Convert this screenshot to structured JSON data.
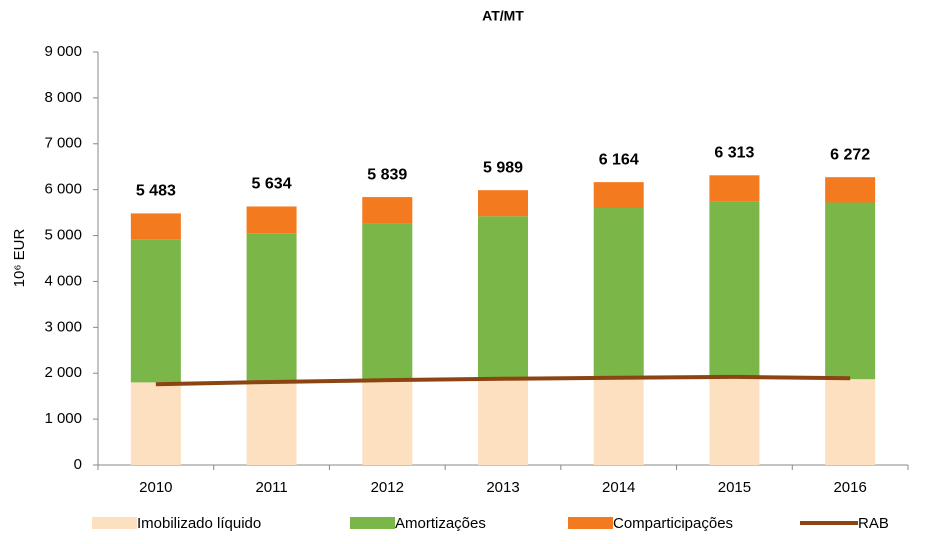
{
  "chart_data": {
    "type": "stacked-bar-line",
    "title": "AT/MT",
    "y_label": "10⁶ EUR",
    "categories": [
      "2010",
      "2011",
      "2012",
      "2013",
      "2014",
      "2015",
      "2016"
    ],
    "series": [
      {
        "name": "Imobilizado líquido",
        "color": "#fde0c0",
        "values": [
          1800,
          1830,
          1870,
          1900,
          1920,
          1930,
          1870
        ]
      },
      {
        "name": "Amortizações",
        "color": "#7ab648",
        "values": [
          3120,
          3220,
          3390,
          3520,
          3680,
          3820,
          3850
        ]
      },
      {
        "name": "Comparticipações",
        "color": "#f47a1f",
        "values": [
          563,
          584,
          579,
          569,
          564,
          563,
          552
        ]
      },
      {
        "name": "RAB",
        "color": "#8b4513",
        "kind": "line",
        "values": [
          1760,
          1810,
          1850,
          1880,
          1900,
          1920,
          1890
        ]
      }
    ],
    "totals": [
      5483,
      5634,
      5839,
      5989,
      6164,
      6313,
      6272
    ],
    "total_labels": [
      "5 483",
      "5 634",
      "5 839",
      "5 989",
      "6 164",
      "6 313",
      "6 272"
    ],
    "ylim": [
      0,
      9000
    ],
    "yticks": [
      0,
      {
        "value": 1000,
        "label": "1 000"
      },
      {
        "value": 2000,
        "label": "2 000"
      },
      {
        "value": 3000,
        "label": "3 000"
      },
      {
        "value": 4000,
        "label": "4 000"
      },
      {
        "value": 5000,
        "label": "5 000"
      },
      {
        "value": 6000,
        "label": "6 000"
      },
      {
        "value": 7000,
        "label": "7 000"
      },
      {
        "value": 8000,
        "label": "8 000"
      },
      {
        "value": 9000,
        "label": "9 000"
      }
    ],
    "legend": "bottom"
  }
}
